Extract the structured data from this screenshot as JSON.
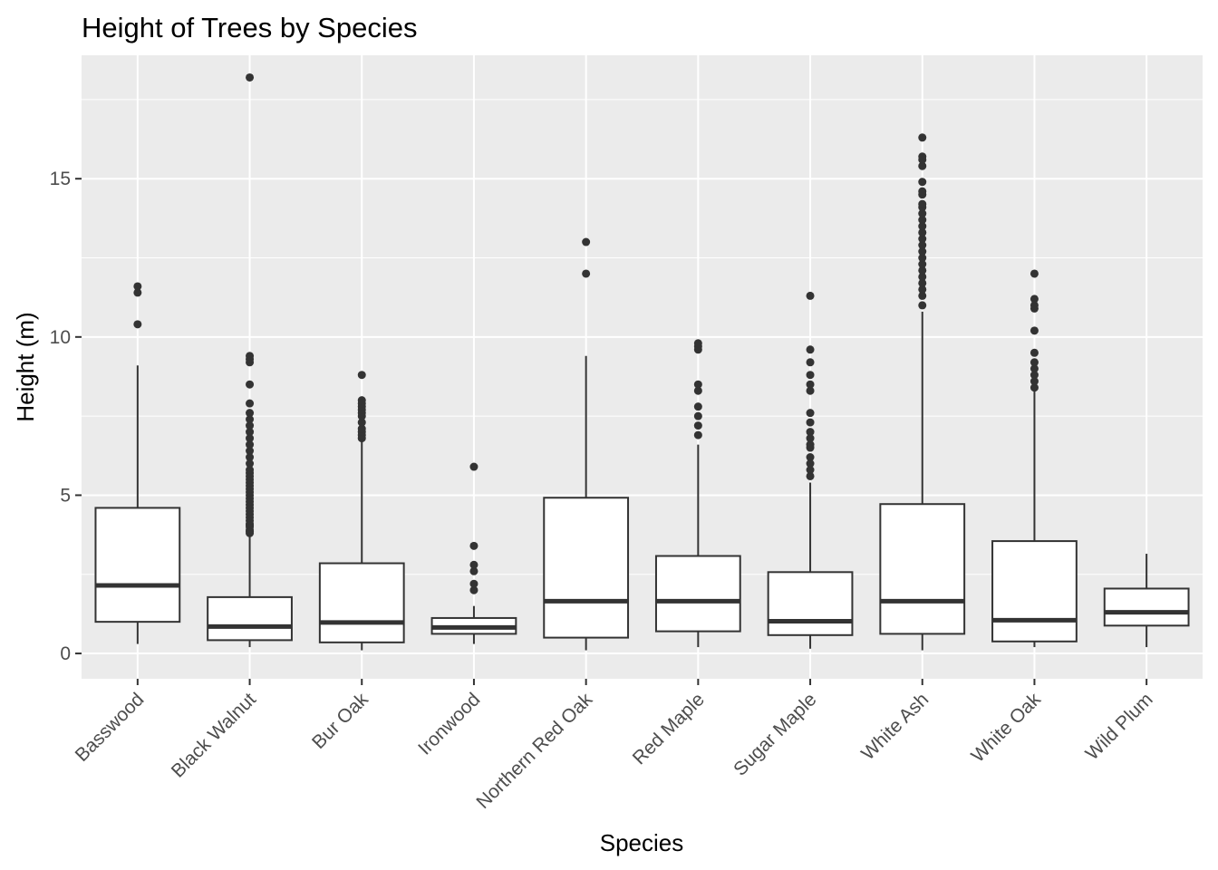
{
  "chart_data": {
    "type": "boxplot",
    "title": "Height of Trees by Species",
    "xlabel": "Species",
    "ylabel": "Height (m)",
    "ylim": [
      -0.8,
      18.9
    ],
    "yticks": [
      0,
      5,
      10,
      15
    ],
    "ytick_labels": [
      "0",
      "5",
      "10",
      "15"
    ],
    "grid": true,
    "panel_color": "#ebebeb",
    "grid_color": "#ffffff",
    "box_fill": "#ffffff",
    "line_color": "#333333",
    "categories": [
      "Basswood",
      "Black Walnut",
      "Bur Oak",
      "Ironwood",
      "Northern Red Oak",
      "Red Maple",
      "Sugar Maple",
      "White Ash",
      "White Oak",
      "Wild Plum"
    ],
    "boxes": [
      {
        "category": "Basswood",
        "whisker_low": 0.3,
        "q1": 1.0,
        "median": 2.15,
        "q3": 4.6,
        "whisker_high": 9.1,
        "outliers": [
          10.4,
          11.4,
          11.6
        ]
      },
      {
        "category": "Black Walnut",
        "whisker_low": 0.2,
        "q1": 0.42,
        "median": 0.85,
        "q3": 1.78,
        "whisker_high": 3.7,
        "outliers": [
          3.8,
          3.85,
          3.9,
          4.0,
          4.05,
          4.1,
          4.2,
          4.3,
          4.4,
          4.5,
          4.6,
          4.7,
          4.8,
          4.9,
          5.0,
          5.1,
          5.2,
          5.3,
          5.4,
          5.5,
          5.6,
          5.7,
          5.8,
          6.0,
          6.2,
          6.4,
          6.6,
          6.8,
          7.0,
          7.2,
          7.4,
          7.6,
          7.9,
          8.5,
          9.2,
          9.3,
          9.4,
          18.2
        ]
      },
      {
        "category": "Bur Oak",
        "whisker_low": 0.1,
        "q1": 0.35,
        "median": 0.98,
        "q3": 2.85,
        "whisker_high": 6.7,
        "outliers": [
          6.8,
          6.9,
          7.0,
          7.1,
          7.3,
          7.5,
          7.6,
          7.7,
          7.8,
          7.9,
          8.0,
          8.8
        ]
      },
      {
        "category": "Ironwood",
        "whisker_low": 0.3,
        "q1": 0.62,
        "median": 0.82,
        "q3": 1.12,
        "whisker_high": 1.5,
        "outliers": [
          2.0,
          2.2,
          2.6,
          2.8,
          3.4,
          5.9
        ]
      },
      {
        "category": "Northern Red Oak",
        "whisker_low": 0.1,
        "q1": 0.5,
        "median": 1.65,
        "q3": 4.92,
        "whisker_high": 9.4,
        "outliers": [
          12.0,
          13.0
        ]
      },
      {
        "category": "Red Maple",
        "whisker_low": 0.2,
        "q1": 0.7,
        "median": 1.65,
        "q3": 3.08,
        "whisker_high": 6.6,
        "outliers": [
          6.9,
          7.2,
          7.5,
          7.8,
          8.3,
          8.5,
          9.6,
          9.7,
          9.8
        ]
      },
      {
        "category": "Sugar Maple",
        "whisker_low": 0.15,
        "q1": 0.58,
        "median": 1.02,
        "q3": 2.57,
        "whisker_high": 5.4,
        "outliers": [
          5.6,
          5.8,
          6.0,
          6.2,
          6.5,
          6.6,
          6.8,
          7.0,
          7.3,
          7.6,
          8.3,
          8.5,
          8.8,
          9.2,
          9.6,
          11.3
        ]
      },
      {
        "category": "White Ash",
        "whisker_low": 0.1,
        "q1": 0.62,
        "median": 1.65,
        "q3": 4.72,
        "whisker_high": 10.8,
        "outliers": [
          11.0,
          11.3,
          11.5,
          11.7,
          11.9,
          12.1,
          12.3,
          12.5,
          12.7,
          12.9,
          13.1,
          13.3,
          13.5,
          13.7,
          13.9,
          14.1,
          14.2,
          14.5,
          14.6,
          14.9,
          15.4,
          15.6,
          15.7,
          16.3
        ]
      },
      {
        "category": "White Oak",
        "whisker_low": 0.2,
        "q1": 0.38,
        "median": 1.05,
        "q3": 3.55,
        "whisker_high": 8.3,
        "outliers": [
          8.4,
          8.6,
          8.8,
          9.0,
          9.2,
          9.5,
          10.2,
          10.9,
          11.0,
          11.2,
          12.0
        ]
      },
      {
        "category": "Wild Plum",
        "whisker_low": 0.2,
        "q1": 0.88,
        "median": 1.3,
        "q3": 2.05,
        "whisker_high": 3.15,
        "outliers": []
      }
    ]
  }
}
